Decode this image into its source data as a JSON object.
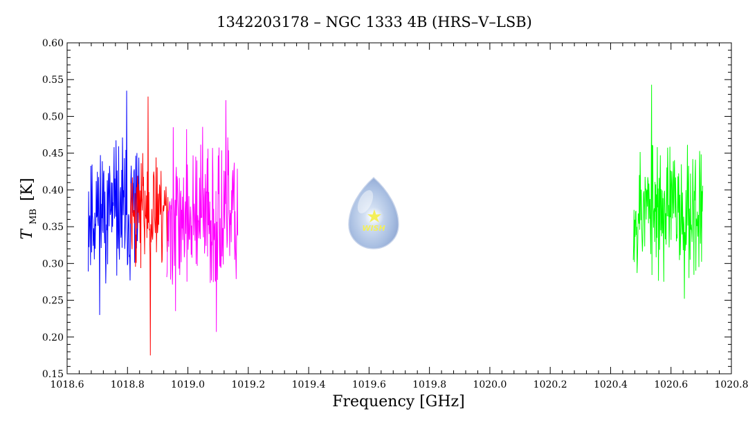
{
  "chart_data": {
    "type": "line",
    "title": "1342203178 – NGC 1333 4B (HRS–V–LSB)",
    "xlabel": "Frequency [GHz]",
    "ylabel_main": "T",
    "ylabel_sub": "MB",
    "ylabel_unit": "[K]",
    "xlim": [
      1018.6,
      1020.8
    ],
    "ylim": [
      0.15,
      0.6
    ],
    "xticks": [
      1018.6,
      1018.8,
      1019.0,
      1019.2,
      1019.4,
      1019.6,
      1019.8,
      1020.0,
      1020.2,
      1020.4,
      1020.6,
      1020.8
    ],
    "xtick_labels": [
      "1018.6",
      "1018.8",
      "1019.0",
      "1019.2",
      "1019.4",
      "1019.6",
      "1019.8",
      "1020.0",
      "1020.2",
      "1020.4",
      "1020.6",
      "1020.8"
    ],
    "yticks": [
      0.15,
      0.2,
      0.25,
      0.3,
      0.35,
      0.4,
      0.45,
      0.5,
      0.55,
      0.6
    ],
    "ytick_labels": [
      "0.15",
      "0.20",
      "0.25",
      "0.30",
      "0.35",
      "0.40",
      "0.45",
      "0.50",
      "0.55",
      "0.60"
    ],
    "grid": false,
    "series": [
      {
        "color": "#0000ff",
        "x_range": [
          1018.67,
          1018.84
        ],
        "mean": 0.37,
        "spread": 0.045,
        "min": 0.23,
        "max": 0.535,
        "seed": 11
      },
      {
        "color": "#ff0000",
        "x_range": [
          1018.81,
          1018.935
        ],
        "mean": 0.375,
        "spread": 0.04,
        "min": 0.175,
        "max": 0.527,
        "seed": 23
      },
      {
        "color": "#ff00ff",
        "x_range": [
          1018.93,
          1019.165
        ],
        "mean": 0.36,
        "spread": 0.05,
        "min": 0.207,
        "max": 0.522,
        "seed": 37
      },
      {
        "color": "#00ff00",
        "x_range": [
          1020.475,
          1020.705
        ],
        "mean": 0.375,
        "spread": 0.045,
        "min": 0.252,
        "max": 0.543,
        "seed": 53
      }
    ]
  },
  "logo": {
    "text": "WISH"
  }
}
